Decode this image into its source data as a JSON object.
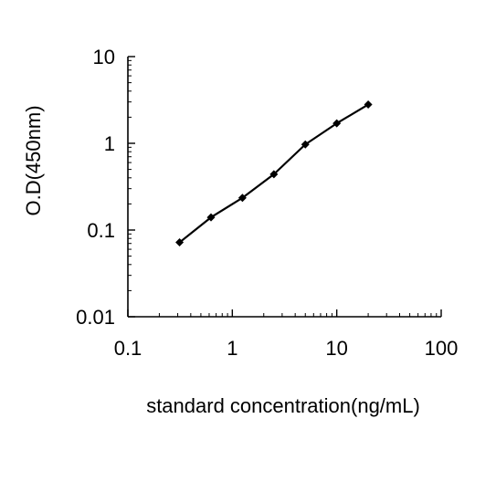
{
  "chart_data": {
    "type": "line",
    "title": "",
    "xlabel": "standard concentration(ng/mL)",
    "ylabel": "O.D(450nm)",
    "x_scale": "log",
    "y_scale": "log",
    "xlim": [
      0.1,
      100
    ],
    "ylim": [
      0.01,
      10
    ],
    "x_ticks": [
      "0.1",
      "1",
      "10",
      "100"
    ],
    "y_ticks": [
      "0.01",
      "0.1",
      "1",
      "10"
    ],
    "grid": false,
    "legend": "none",
    "series": [
      {
        "color": "#000000",
        "marker": "diamond",
        "x": [
          0.3125,
          0.625,
          1.25,
          2.5,
          5,
          10,
          20
        ],
        "y": [
          0.072,
          0.14,
          0.235,
          0.44,
          0.97,
          1.7,
          2.8
        ]
      }
    ]
  }
}
